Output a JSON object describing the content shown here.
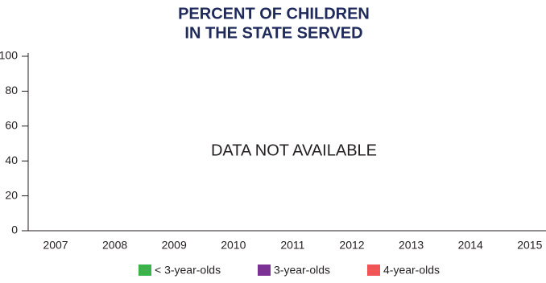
{
  "chart_data": {
    "type": "bar",
    "title": [
      "PERCENT OF CHILDREN",
      "IN THE STATE SERVED"
    ],
    "annotation": "DATA NOT AVAILABLE",
    "categories": [
      "2007",
      "2008",
      "2009",
      "2010",
      "2011",
      "2012",
      "2013",
      "2014",
      "2015"
    ],
    "series": [
      {
        "name": "< 3-year-olds",
        "color": "#3cb34a",
        "values": [
          null,
          null,
          null,
          null,
          null,
          null,
          null,
          null,
          null
        ]
      },
      {
        "name": "3-year-olds",
        "color": "#7b3294",
        "values": [
          null,
          null,
          null,
          null,
          null,
          null,
          null,
          null,
          null
        ]
      },
      {
        "name": "4-year-olds",
        "color": "#f05454",
        "values": [
          null,
          null,
          null,
          null,
          null,
          null,
          null,
          null,
          null
        ]
      }
    ],
    "ylim": [
      0,
      100
    ],
    "yticks": [
      0,
      20,
      40,
      60,
      80,
      100
    ]
  }
}
